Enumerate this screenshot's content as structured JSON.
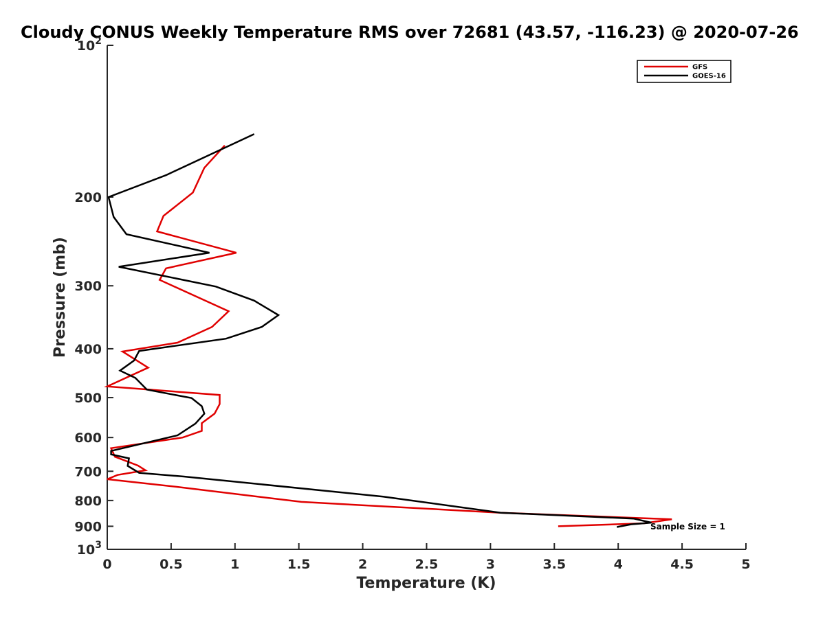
{
  "chart_data": {
    "type": "line",
    "title": "Cloudy CONUS Weekly Temperature RMS over 72681 (43.57, -116.23) @ 2020-07-26",
    "xlabel": "Temperature (K)",
    "ylabel": "Pressure (mb)",
    "xlim": [
      0,
      5
    ],
    "ylim": [
      100,
      1000
    ],
    "yscale": "log",
    "y_reversed": true,
    "grid": false,
    "legend_position": "top-right",
    "x_ticks": [
      "0",
      "0.5",
      "1",
      "1.5",
      "2",
      "2.5",
      "3",
      "3.5",
      "4",
      "4.5",
      "5"
    ],
    "y_ticks": [
      {
        "value": 100,
        "base": "10",
        "exp": "2"
      },
      {
        "value": 200,
        "label": "200"
      },
      {
        "value": 300,
        "label": "300"
      },
      {
        "value": 400,
        "label": "400"
      },
      {
        "value": 500,
        "label": "500"
      },
      {
        "value": 600,
        "label": "600"
      },
      {
        "value": 700,
        "label": "700"
      },
      {
        "value": 800,
        "label": "800"
      },
      {
        "value": 900,
        "label": "900"
      },
      {
        "value": 1000,
        "base": "10",
        "exp": "3"
      }
    ],
    "annotation": "Sample Size = 1",
    "series": [
      {
        "name": "GFS",
        "color": "#e00000",
        "x": [
          0.92,
          0.76,
          0.67,
          0.44,
          0.39,
          1.01,
          0.46,
          0.41,
          0.95,
          0.82,
          0.55,
          0.12,
          0.32,
          0.0,
          0.88,
          0.88,
          0.84,
          0.74,
          0.74,
          0.59,
          0.03,
          0.06,
          0.24,
          0.3,
          0.08,
          0.0,
          0.55,
          1.52,
          3.08,
          4.42,
          4.2,
          3.53
        ],
        "y": [
          158,
          175,
          196,
          218,
          234,
          258,
          277,
          292,
          337,
          362,
          389,
          405,
          436,
          475,
          494,
          515,
          538,
          562,
          582,
          600,
          630,
          655,
          682,
          697,
          712,
          726,
          752,
          805,
          846,
          872,
          888,
          900
        ]
      },
      {
        "name": "GOES-16",
        "color": "#000000",
        "x": [
          1.15,
          0.46,
          0.01,
          0.05,
          0.15,
          0.8,
          0.09,
          0.85,
          1.15,
          1.34,
          1.21,
          0.93,
          0.25,
          0.21,
          0.1,
          0.22,
          0.31,
          0.66,
          0.74,
          0.76,
          0.69,
          0.55,
          0.03,
          0.03,
          0.17,
          0.16,
          0.25,
          0.6,
          2.16,
          3.08,
          4.12,
          4.26,
          4.1,
          3.99
        ],
        "y": [
          150,
          181,
          200,
          219,
          237,
          258,
          275,
          301,
          321,
          343,
          362,
          382,
          404,
          422,
          442,
          457,
          482,
          501,
          520,
          538,
          563,
          594,
          638,
          648,
          660,
          683,
          705,
          717,
          786,
          846,
          869,
          885,
          892,
          903
        ]
      }
    ]
  }
}
